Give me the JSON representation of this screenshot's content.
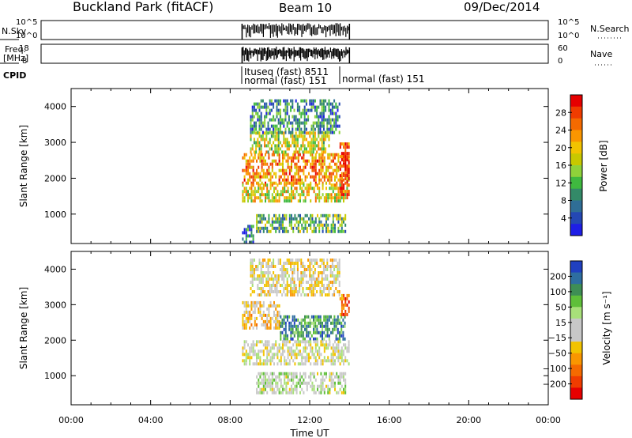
{
  "header": {
    "station": "Buckland Park (fitACF)",
    "beam": "Beam 10",
    "date": "09/Dec/2014"
  },
  "panels": {
    "nsky": {
      "left_label": "N.Sky",
      "tick_top": "10^5",
      "tick_bottom": "10^0",
      "right_tick_top": "10^5",
      "right_tick_bottom": "10^0",
      "right_label": "N.Search"
    },
    "freq": {
      "left_label_1": "Freq.",
      "left_label_2": "[MHz]",
      "tick_top": "18",
      "tick_bottom": "8",
      "right_tick_top": "60",
      "right_tick_bottom": "0",
      "right_label": "Nave"
    },
    "cpid": {
      "label": "CPID",
      "entries": [
        "Ituseq (fast) 8511",
        "normal (fast) 151",
        "normal (fast) 151"
      ]
    }
  },
  "colorbars": {
    "power": {
      "label": "Power [dB]",
      "ticks": [
        "28",
        "24",
        "20",
        "16",
        "12",
        "8",
        "4"
      ],
      "colors": [
        "#e60000",
        "#f03c00",
        "#f56a00",
        "#fa9600",
        "#f2c300",
        "#c8c800",
        "#8fd23a",
        "#3fb93f",
        "#338a68",
        "#2f6e96",
        "#2448b4",
        "#1e1ee6"
      ]
    },
    "velocity": {
      "label": "Velocity [m s⁻¹]",
      "ticks": [
        "200",
        "100",
        "50",
        "15",
        "−15",
        "−50",
        "−100",
        "−200"
      ],
      "colors": [
        "#2040c0",
        "#2e6ea0",
        "#3e8e55",
        "#5fbf3a",
        "#a8e07a",
        "#c8c8c8",
        "#c8c8c8",
        "#f2c300",
        "#fa9600",
        "#f56a00",
        "#f03c00",
        "#e60000"
      ]
    }
  },
  "axes": {
    "ylabel": "Slant Range [km]",
    "yticks": [
      "4000",
      "3000",
      "2000",
      "1000"
    ],
    "xticks": [
      "00:00",
      "04:00",
      "08:00",
      "12:00",
      "16:00",
      "20:00",
      "00:00"
    ],
    "xlabel": "Time UT"
  },
  "chart_data": {
    "type": "heatmap",
    "x_range_hours": [
      0,
      24
    ],
    "y_range_km": [
      180,
      4500
    ],
    "data_window_hours": [
      8.6,
      14.0
    ],
    "panels": [
      {
        "name": "Power",
        "units": "dB",
        "range": [
          0,
          30
        ],
        "blocks": [
          {
            "t0": 8.6,
            "t1": 14.0,
            "r0": 1850,
            "r1": 2700,
            "level": 22
          },
          {
            "t0": 8.6,
            "t1": 14.0,
            "r0": 1400,
            "r1": 1850,
            "level": 17
          },
          {
            "t0": 9.0,
            "t1": 13.0,
            "r0": 2700,
            "r1": 3300,
            "level": 16
          },
          {
            "t0": 9.0,
            "t1": 13.5,
            "r0": 3300,
            "r1": 4200,
            "level": 8
          },
          {
            "t0": 9.3,
            "t1": 13.8,
            "r0": 500,
            "r1": 1000,
            "level": 11
          },
          {
            "t0": 13.5,
            "t1": 14.0,
            "r0": 1500,
            "r1": 3000,
            "level": 26
          },
          {
            "t0": 8.6,
            "t1": 9.2,
            "r0": 250,
            "r1": 700,
            "level": 7
          }
        ]
      },
      {
        "name": "Velocity",
        "units": "m s^-1",
        "range": [
          -250,
          250
        ],
        "blocks": [
          {
            "t0": 8.6,
            "t1": 10.5,
            "r0": 2300,
            "r1": 3100,
            "level": -50
          },
          {
            "t0": 10.5,
            "t1": 13.8,
            "r0": 2000,
            "r1": 2700,
            "level": 150
          },
          {
            "t0": 8.6,
            "t1": 14.0,
            "r0": 1300,
            "r1": 2000,
            "level": 0
          },
          {
            "t0": 9.3,
            "t1": 13.8,
            "r0": 500,
            "r1": 1100,
            "level": 30
          },
          {
            "t0": 13.5,
            "t1": 14.0,
            "r0": 2700,
            "r1": 3300,
            "level": -150
          },
          {
            "t0": 9.0,
            "t1": 13.5,
            "r0": 3300,
            "r1": 4300,
            "level": -20
          }
        ]
      }
    ]
  }
}
